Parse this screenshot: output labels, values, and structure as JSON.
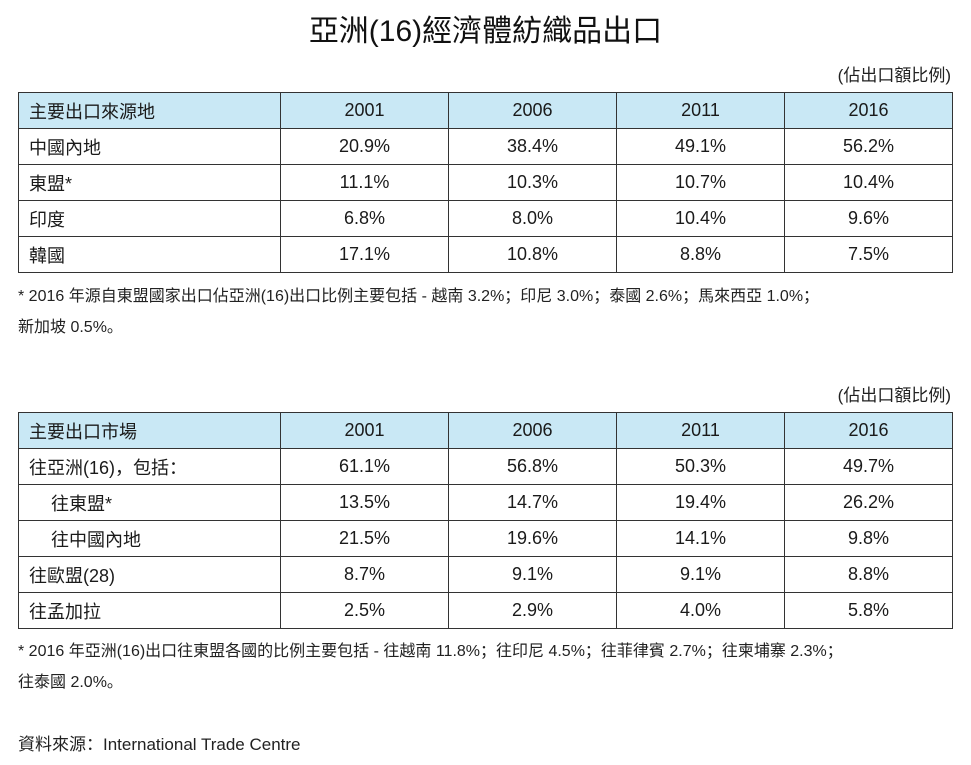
{
  "title": "亞洲(16)經濟體紡織品出口",
  "table1": {
    "unit_label": "(佔出口額比例)",
    "header": [
      "主要出口來源地",
      "2001",
      "2006",
      "2011",
      "2016"
    ],
    "rows": [
      [
        "中國內地",
        "20.9%",
        "38.4%",
        "49.1%",
        "56.2%"
      ],
      [
        "東盟*",
        "11.1%",
        "10.3%",
        "10.7%",
        "10.4%"
      ],
      [
        "印度",
        "6.8%",
        "8.0%",
        "10.4%",
        "9.6%"
      ],
      [
        "韓國",
        "17.1%",
        "10.8%",
        "8.8%",
        "7.5%"
      ]
    ],
    "note_line1": "* 2016 年源自東盟國家出口佔亞洲(16)出口比例主要包括 - 越南 3.2%；印尼 3.0%；泰國 2.6%；馬來西亞 1.0%；",
    "note_line2": "新加坡 0.5%。"
  },
  "table2": {
    "unit_label": "(佔出口額比例)",
    "header": [
      "主要出口市場",
      "2001",
      "2006",
      "2011",
      "2016"
    ],
    "rows": [
      [
        "往亞洲(16)，包括：",
        "61.1%",
        "56.8%",
        "50.3%",
        "49.7%"
      ],
      [
        "往東盟*",
        "13.5%",
        "14.7%",
        "19.4%",
        "26.2%"
      ],
      [
        "往中國內地",
        "21.5%",
        "19.6%",
        "14.1%",
        "9.8%"
      ],
      [
        "往歐盟(28)",
        "8.7%",
        "9.1%",
        "9.1%",
        "8.8%"
      ],
      [
        "往孟加拉",
        "2.5%",
        "2.9%",
        "4.0%",
        "5.8%"
      ]
    ],
    "note_line1": "* 2016 年亞洲(16)出口往東盟各國的比例主要包括 - 往越南 11.8%；往印尼 4.5%；往菲律賓 2.7%；往柬埔寨 2.3%；",
    "note_line2": "往泰國 2.0%。"
  },
  "source": "資料來源：International Trade Centre"
}
